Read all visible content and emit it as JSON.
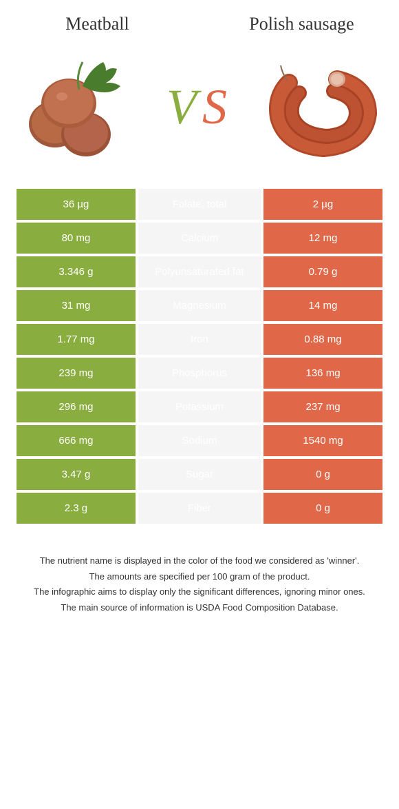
{
  "header": {
    "left_title": "Meatball",
    "right_title": "Polish sausage",
    "vs_v": "V",
    "vs_s": "S"
  },
  "colors": {
    "left": "#8aad3f",
    "right": "#e06848",
    "mid_bg": "#f5f5f5",
    "winner_left": "#6d8f2e",
    "winner_right": "#cc5536"
  },
  "rows": [
    {
      "left": "36 µg",
      "label": "Folate, total",
      "right": "2 µg",
      "winner": "left"
    },
    {
      "left": "80 mg",
      "label": "Calcium",
      "right": "12 mg",
      "winner": "left"
    },
    {
      "left": "3.346 g",
      "label": "Polyunsaturated fat",
      "right": "0.79 g",
      "winner": "left"
    },
    {
      "left": "31 mg",
      "label": "Magnesium",
      "right": "14 mg",
      "winner": "left"
    },
    {
      "left": "1.77 mg",
      "label": "Iron",
      "right": "0.88 mg",
      "winner": "left"
    },
    {
      "left": "239 mg",
      "label": "Phosphorus",
      "right": "136 mg",
      "winner": "left"
    },
    {
      "left": "296 mg",
      "label": "Potassium",
      "right": "237 mg",
      "winner": "left"
    },
    {
      "left": "666 mg",
      "label": "Sodium",
      "right": "1540 mg",
      "winner": "left"
    },
    {
      "left": "3.47 g",
      "label": "Sugar",
      "right": "0 g",
      "winner": "right"
    },
    {
      "left": "2.3 g",
      "label": "Fiber",
      "right": "0 g",
      "winner": "left"
    }
  ],
  "footnotes": [
    "The nutrient name is displayed in the color of the food we considered as 'winner'.",
    "The amounts are specified per 100 gram of the product.",
    "The infographic aims to display only the significant differences, ignoring minor ones.",
    "The main source of information is USDA Food Composition Database."
  ]
}
